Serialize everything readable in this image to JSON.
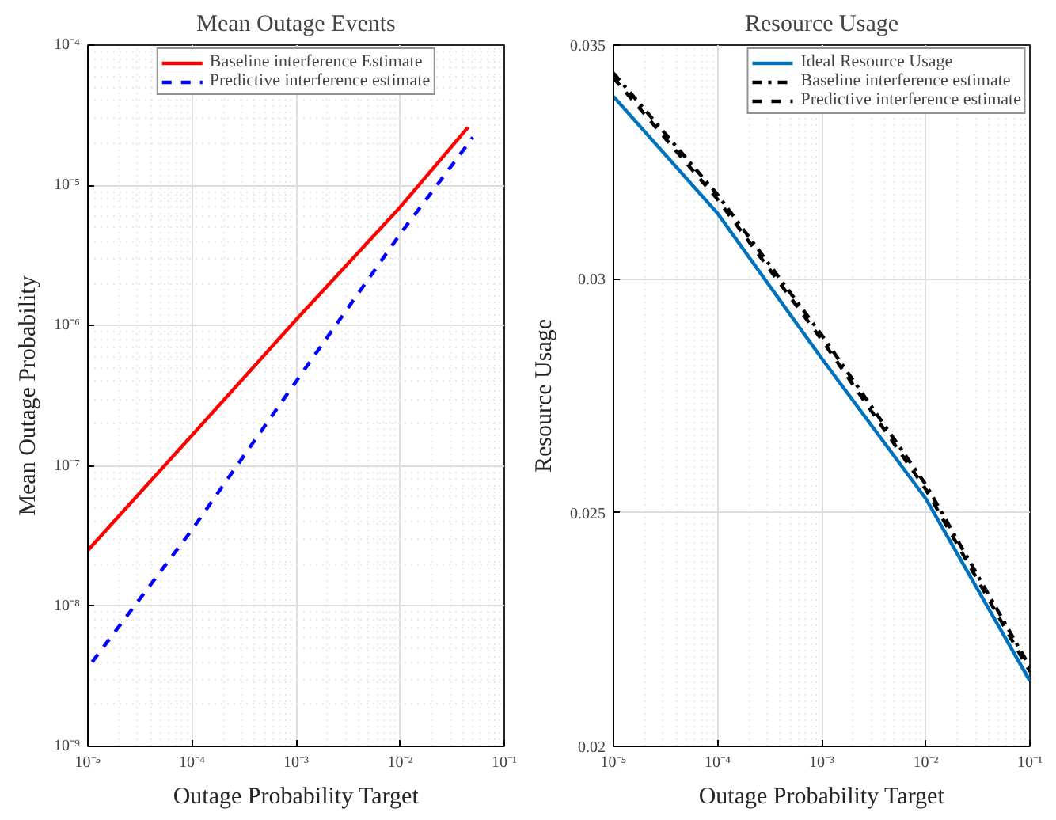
{
  "chart_data": [
    {
      "type": "line",
      "title": "Mean Outage Events",
      "xlabel": "Outage Probability Target",
      "ylabel": "Mean Outage Probability",
      "log": "xy",
      "xlim": [
        1e-05,
        0.1
      ],
      "ylim": [
        1e-09,
        0.0001
      ],
      "xticks": [
        {
          "value": 1e-05,
          "label": "10⁻⁵"
        },
        {
          "value": 0.0001,
          "label": "10⁻⁴"
        },
        {
          "value": 0.001,
          "label": "10⁻³"
        },
        {
          "value": 0.01,
          "label": "10⁻²"
        },
        {
          "value": 0.1,
          "label": "10⁻¹"
        }
      ],
      "yticks": [
        {
          "value": 1e-09,
          "label": "10⁻⁹"
        },
        {
          "value": 1e-08,
          "label": "10⁻⁸"
        },
        {
          "value": 1e-07,
          "label": "10⁻⁷"
        },
        {
          "value": 1e-06,
          "label": "10⁻⁶"
        },
        {
          "value": 1e-05,
          "label": "10⁻⁵"
        },
        {
          "value": 0.0001,
          "label": "10⁻⁴"
        }
      ],
      "grid": true,
      "legend": "top",
      "series": [
        {
          "name": "Baseline interference Estimate",
          "color": "#ff0000",
          "line_style": "solid",
          "x": [
            1e-05,
            0.0001,
            0.001,
            0.01,
            0.045
          ],
          "values": [
            2.5e-08,
            1.65e-07,
            1.1e-06,
            7e-06,
            2.6e-05
          ]
        },
        {
          "name": "Predictive interference estimate",
          "color": "#0000ff",
          "line_style": "dashed",
          "x": [
            1.1e-05,
            0.0001,
            0.001,
            0.01,
            0.05
          ],
          "values": [
            4e-09,
            3.5e-08,
            4e-07,
            4.5e-06,
            2.2e-05
          ]
        }
      ]
    },
    {
      "type": "line",
      "title": "Resource Usage",
      "xlabel": "Outage Probability Target",
      "ylabel": "Resource Usage",
      "log": "x",
      "xlim": [
        1e-05,
        0.1
      ],
      "ylim": [
        0.02,
        0.035
      ],
      "xticks": [
        {
          "value": 1e-05,
          "label": "10⁻⁵"
        },
        {
          "value": 0.0001,
          "label": "10⁻⁴"
        },
        {
          "value": 0.001,
          "label": "10⁻³"
        },
        {
          "value": 0.01,
          "label": "10⁻²"
        },
        {
          "value": 0.1,
          "label": "10⁻¹"
        }
      ],
      "yticks": [
        0.02,
        0.025,
        0.03,
        0.035
      ],
      "grid": true,
      "legend": "top right",
      "series": [
        {
          "name": "Ideal Resource Usage",
          "color": "#0072bd",
          "line_style": "solid",
          "x": [
            1e-05,
            0.0001,
            0.001,
            0.01,
            0.1
          ],
          "values": [
            0.0339,
            0.0314,
            0.0283,
            0.0253,
            0.0214
          ]
        },
        {
          "name": "Baseline interference estimate",
          "color": "#000000",
          "line_style": "dashdot",
          "x": [
            1e-05,
            0.0001,
            0.001,
            0.01,
            0.1
          ],
          "values": [
            0.0344,
            0.0318,
            0.0288,
            0.0256,
            0.0217
          ]
        },
        {
          "name": "Predictive interference estimate",
          "color": "#000000",
          "line_style": "dashed",
          "x": [
            1e-05,
            0.0001,
            0.001,
            0.01,
            0.1
          ],
          "values": [
            0.0343,
            0.0317,
            0.0287,
            0.0255,
            0.0216
          ]
        }
      ]
    }
  ]
}
